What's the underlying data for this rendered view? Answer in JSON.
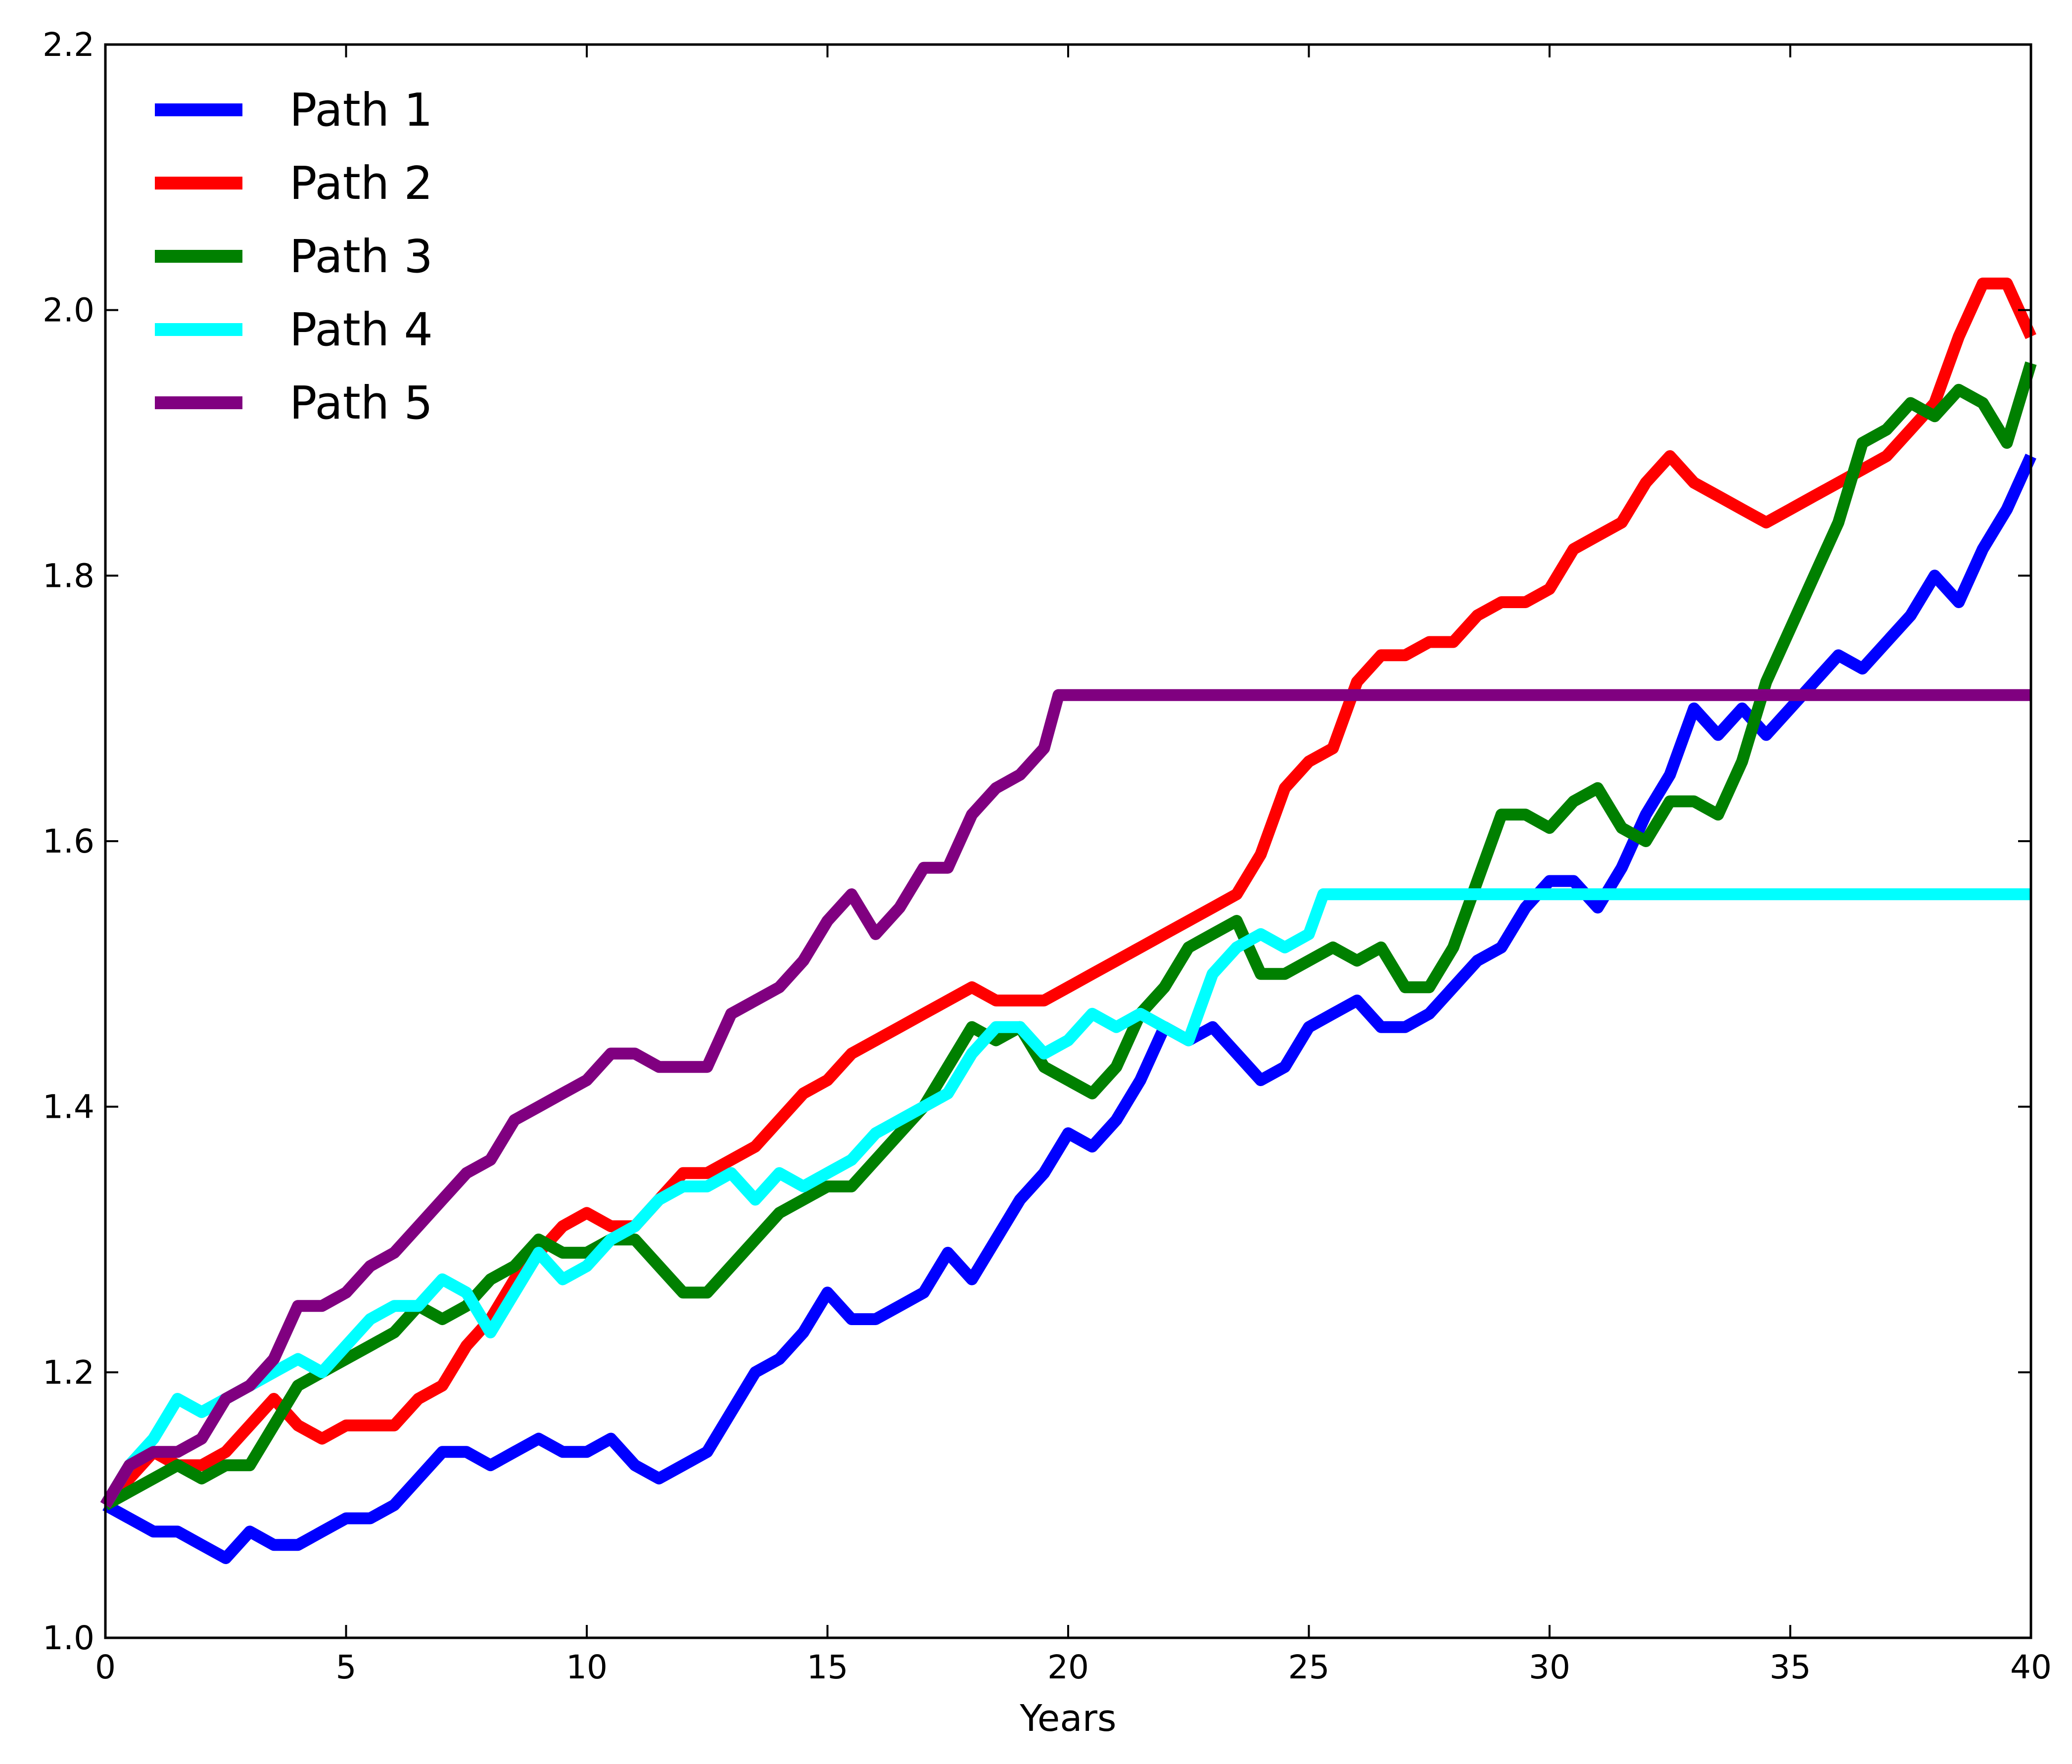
{
  "chart_data": {
    "type": "line",
    "title": "",
    "xlabel": "Years",
    "ylabel": "",
    "xlim": [
      0,
      40
    ],
    "ylim": [
      1.0,
      2.2
    ],
    "xticks": [
      "0",
      "5",
      "10",
      "15",
      "20",
      "25",
      "30",
      "35",
      "40"
    ],
    "yticks": [
      "1.0",
      "1.2",
      "1.4",
      "1.6",
      "1.8",
      "2.0",
      "2.2"
    ],
    "grid": false,
    "legend": {
      "placement": "top-left"
    },
    "series": [
      {
        "name": "Path 1",
        "color": "#0000ff",
        "x": [
          0,
          0.5,
          1,
          1.5,
          2,
          2.5,
          3,
          3.5,
          4,
          4.5,
          5,
          5.5,
          6,
          6.5,
          7,
          7.5,
          8,
          8.5,
          9,
          9.5,
          10,
          10.5,
          11,
          11.5,
          12,
          12.5,
          13,
          13.5,
          14,
          14.5,
          15,
          15.5,
          16,
          16.5,
          17,
          17.5,
          18,
          18.5,
          19,
          19.5,
          20,
          20.5,
          21,
          21.5,
          22,
          22.5,
          23,
          23.5,
          24,
          24.5,
          25,
          25.5,
          26,
          26.5,
          27,
          27.5,
          28,
          28.5,
          29,
          29.5,
          30,
          30.5,
          31,
          31.5,
          32,
          32.5,
          33,
          33.5,
          34,
          34.5,
          35,
          35.5,
          36,
          36.5,
          37,
          37.5,
          38,
          38.5,
          39,
          39.5,
          40
        ],
        "y": [
          1.1,
          1.09,
          1.08,
          1.08,
          1.07,
          1.06,
          1.08,
          1.07,
          1.07,
          1.08,
          1.09,
          1.09,
          1.1,
          1.12,
          1.14,
          1.14,
          1.13,
          1.14,
          1.15,
          1.14,
          1.14,
          1.15,
          1.13,
          1.12,
          1.13,
          1.14,
          1.17,
          1.2,
          1.21,
          1.23,
          1.26,
          1.24,
          1.24,
          1.25,
          1.26,
          1.29,
          1.27,
          1.3,
          1.33,
          1.35,
          1.38,
          1.37,
          1.39,
          1.42,
          1.46,
          1.45,
          1.46,
          1.44,
          1.42,
          1.43,
          1.46,
          1.47,
          1.48,
          1.46,
          1.46,
          1.47,
          1.49,
          1.51,
          1.52,
          1.55,
          1.57,
          1.57,
          1.55,
          1.58,
          1.62,
          1.65,
          1.7,
          1.68,
          1.7,
          1.68,
          1.7,
          1.72,
          1.74,
          1.73,
          1.75,
          1.77,
          1.8,
          1.78,
          1.82,
          1.85,
          1.89
        ]
      },
      {
        "name": "Path 2",
        "color": "#ff0000",
        "x": [
          0,
          0.5,
          1,
          1.5,
          2,
          2.5,
          3,
          3.5,
          4,
          4.5,
          5,
          5.5,
          6,
          6.5,
          7,
          7.5,
          8,
          8.5,
          9,
          9.5,
          10,
          10.5,
          11,
          11.5,
          12,
          12.5,
          13,
          13.5,
          14,
          14.5,
          15,
          15.5,
          16,
          16.5,
          17,
          17.5,
          18,
          18.5,
          19,
          19.5,
          20,
          20.5,
          21,
          21.5,
          22,
          22.5,
          23,
          23.5,
          24,
          24.5,
          25,
          25.5,
          26,
          26.5,
          27,
          27.5,
          28,
          28.5,
          29,
          29.5,
          30,
          30.5,
          31,
          31.5,
          32,
          32.5,
          33,
          33.5,
          34,
          34.5,
          35,
          35.5,
          36,
          36.5,
          37,
          37.5,
          38,
          38.5,
          39,
          39.5,
          40
        ],
        "y": [
          1.1,
          1.12,
          1.14,
          1.13,
          1.13,
          1.14,
          1.16,
          1.18,
          1.16,
          1.15,
          1.16,
          1.16,
          1.16,
          1.18,
          1.19,
          1.22,
          1.24,
          1.27,
          1.29,
          1.31,
          1.32,
          1.31,
          1.31,
          1.33,
          1.35,
          1.35,
          1.36,
          1.37,
          1.39,
          1.41,
          1.42,
          1.44,
          1.45,
          1.46,
          1.47,
          1.48,
          1.49,
          1.48,
          1.48,
          1.48,
          1.49,
          1.5,
          1.51,
          1.52,
          1.53,
          1.54,
          1.55,
          1.56,
          1.59,
          1.64,
          1.66,
          1.67,
          1.72,
          1.74,
          1.74,
          1.75,
          1.75,
          1.77,
          1.78,
          1.78,
          1.79,
          1.82,
          1.83,
          1.84,
          1.87,
          1.89,
          1.87,
          1.86,
          1.85,
          1.84,
          1.85,
          1.86,
          1.87,
          1.88,
          1.89,
          1.91,
          1.93,
          1.98,
          2.02,
          2.02,
          1.98
        ]
      },
      {
        "name": "Path 3",
        "color": "#008000",
        "x": [
          0,
          0.5,
          1,
          1.5,
          2,
          2.5,
          3,
          3.5,
          4,
          4.5,
          5,
          5.5,
          6,
          6.5,
          7,
          7.5,
          8,
          8.5,
          9,
          9.5,
          10,
          10.5,
          11,
          11.5,
          12,
          12.5,
          13,
          13.5,
          14,
          14.5,
          15,
          15.5,
          16,
          16.5,
          17,
          17.5,
          18,
          18.5,
          19,
          19.5,
          20,
          20.5,
          21,
          21.5,
          22,
          22.5,
          23,
          23.5,
          24,
          24.5,
          25,
          25.5,
          26,
          26.5,
          27,
          27.5,
          28,
          28.5,
          29,
          29.5,
          30,
          30.5,
          31,
          31.5,
          32,
          32.5,
          33,
          33.5,
          34,
          34.5,
          35,
          35.5,
          36,
          36.5,
          37,
          37.5,
          38,
          38.5,
          39,
          39.5,
          40
        ],
        "y": [
          1.1,
          1.11,
          1.12,
          1.13,
          1.12,
          1.13,
          1.13,
          1.16,
          1.19,
          1.2,
          1.21,
          1.22,
          1.23,
          1.25,
          1.24,
          1.25,
          1.27,
          1.28,
          1.3,
          1.29,
          1.29,
          1.3,
          1.3,
          1.28,
          1.26,
          1.26,
          1.28,
          1.3,
          1.32,
          1.33,
          1.34,
          1.34,
          1.36,
          1.38,
          1.4,
          1.43,
          1.46,
          1.45,
          1.46,
          1.43,
          1.42,
          1.41,
          1.43,
          1.47,
          1.49,
          1.52,
          1.53,
          1.54,
          1.5,
          1.5,
          1.51,
          1.52,
          1.51,
          1.52,
          1.49,
          1.49,
          1.52,
          1.57,
          1.62,
          1.62,
          1.61,
          1.63,
          1.64,
          1.61,
          1.6,
          1.63,
          1.63,
          1.62,
          1.66,
          1.72,
          1.76,
          1.8,
          1.84,
          1.9,
          1.91,
          1.93,
          1.92,
          1.94,
          1.93,
          1.9,
          1.96
        ]
      },
      {
        "name": "Path 4",
        "color": "#00ffff",
        "x": [
          0,
          0.5,
          1,
          1.5,
          2,
          2.5,
          3,
          3.5,
          4,
          4.5,
          5,
          5.5,
          6,
          6.5,
          7,
          7.5,
          8,
          8.5,
          9,
          9.5,
          10,
          10.5,
          11,
          11.5,
          12,
          12.5,
          13,
          13.5,
          14,
          14.5,
          15,
          15.5,
          16,
          16.5,
          17,
          17.5,
          18,
          18.5,
          19,
          19.5,
          20,
          20.5,
          21,
          21.5,
          22,
          22.5,
          23,
          23.5,
          24,
          24.5,
          25,
          25.3,
          26,
          28,
          30,
          32,
          34,
          36,
          38,
          40
        ],
        "y": [
          1.1,
          1.13,
          1.15,
          1.18,
          1.17,
          1.18,
          1.19,
          1.2,
          1.21,
          1.2,
          1.22,
          1.24,
          1.25,
          1.25,
          1.27,
          1.26,
          1.23,
          1.26,
          1.29,
          1.27,
          1.28,
          1.3,
          1.31,
          1.33,
          1.34,
          1.34,
          1.35,
          1.33,
          1.35,
          1.34,
          1.35,
          1.36,
          1.38,
          1.39,
          1.4,
          1.41,
          1.44,
          1.46,
          1.46,
          1.44,
          1.45,
          1.47,
          1.46,
          1.47,
          1.46,
          1.45,
          1.5,
          1.52,
          1.53,
          1.52,
          1.53,
          1.56,
          1.56,
          1.56,
          1.56,
          1.56,
          1.56,
          1.56,
          1.56,
          1.56
        ]
      },
      {
        "name": "Path 5",
        "color": "#800080",
        "x": [
          0,
          0.5,
          1,
          1.5,
          2,
          2.5,
          3,
          3.5,
          4,
          4.5,
          5,
          5.5,
          6,
          6.5,
          7,
          7.5,
          8,
          8.5,
          9,
          9.5,
          10,
          10.5,
          11,
          11.5,
          12,
          12.5,
          13,
          13.5,
          14,
          14.5,
          15,
          15.5,
          16,
          16.5,
          17,
          17.5,
          18,
          18.5,
          19,
          19.5,
          19.8,
          22,
          25,
          30,
          35,
          40
        ],
        "y": [
          1.1,
          1.13,
          1.14,
          1.14,
          1.15,
          1.18,
          1.19,
          1.21,
          1.25,
          1.25,
          1.26,
          1.28,
          1.29,
          1.31,
          1.33,
          1.35,
          1.36,
          1.39,
          1.4,
          1.41,
          1.42,
          1.44,
          1.44,
          1.43,
          1.43,
          1.43,
          1.47,
          1.48,
          1.49,
          1.51,
          1.54,
          1.56,
          1.53,
          1.55,
          1.58,
          1.58,
          1.62,
          1.64,
          1.65,
          1.67,
          1.71,
          1.71,
          1.71,
          1.71,
          1.71,
          1.71
        ]
      }
    ]
  }
}
